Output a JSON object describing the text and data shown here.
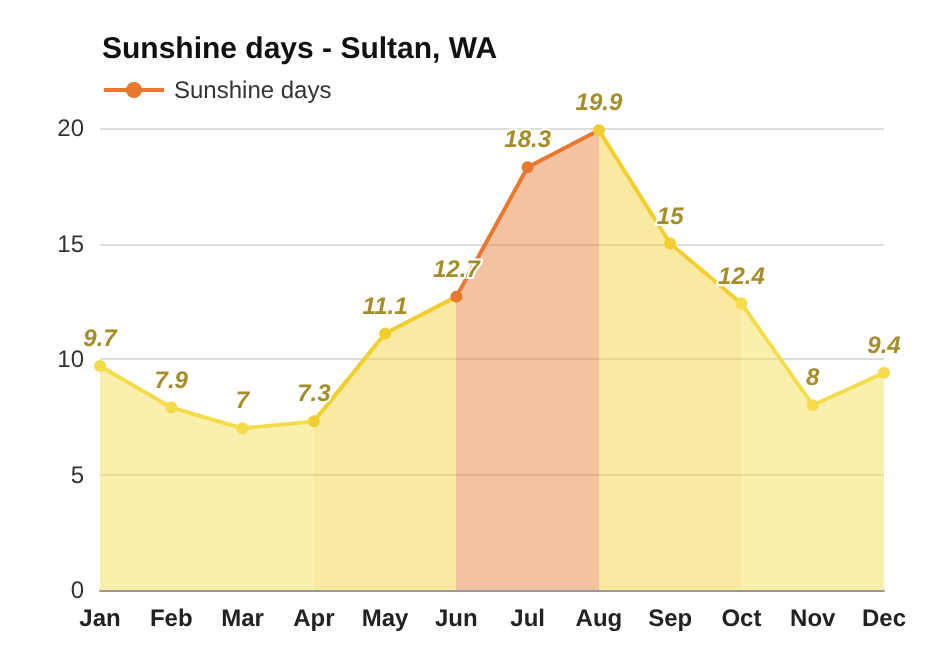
{
  "chart_data": {
    "type": "area",
    "title": "Sunshine days - Sultan, WA",
    "categories": [
      "Jan",
      "Feb",
      "Mar",
      "Apr",
      "May",
      "Jun",
      "Jul",
      "Aug",
      "Sep",
      "Oct",
      "Nov",
      "Dec"
    ],
    "series": [
      {
        "name": "Sunshine days",
        "color": "#e8782e",
        "values": [
          9.7,
          7.9,
          7,
          7.3,
          11.1,
          12.7,
          18.3,
          19.9,
          15,
          12.4,
          8,
          9.4
        ],
        "colors": [
          "#f5dc4a",
          "#f5dc4a",
          "#f5dc4a",
          "#f2cf2e",
          "#f2cf2e",
          "#e8782e",
          "#e8782e",
          "#f2cf2e",
          "#f2cf2e",
          "#f5dc4a",
          "#f5dc4a",
          "#f5dc4a"
        ]
      }
    ],
    "ylim": [
      0,
      20
    ],
    "yticks": [
      0,
      5,
      10,
      15,
      20
    ],
    "grid": "y",
    "legend": "top left",
    "marker": "circle",
    "data_labels": true
  }
}
